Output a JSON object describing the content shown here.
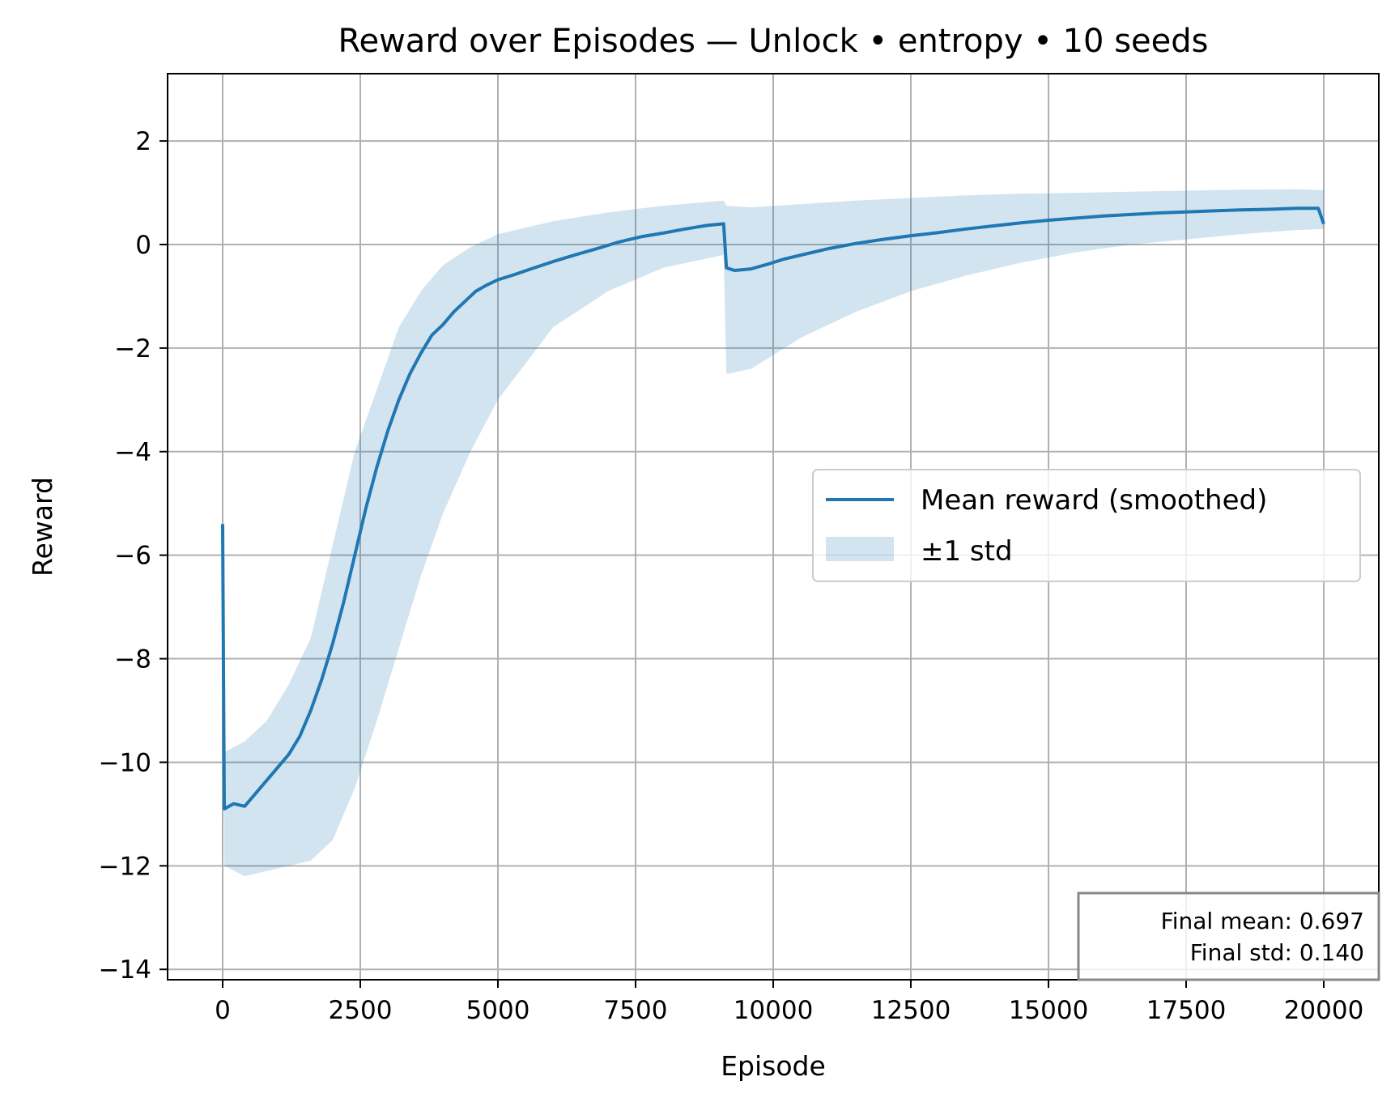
{
  "chart_data": {
    "type": "line",
    "title": "Reward over Episodes — Unlock • entropy • 10 seeds",
    "xlabel": "Episode",
    "ylabel": "Reward",
    "xlim": [
      -1000,
      21000
    ],
    "ylim": [
      -14.2,
      3.3
    ],
    "xticks": [
      0,
      2500,
      5000,
      7500,
      10000,
      12500,
      15000,
      17500,
      20000
    ],
    "xtick_labels": [
      "0",
      "2500",
      "5000",
      "7500",
      "10000",
      "12500",
      "15000",
      "17500",
      "20000"
    ],
    "yticks": [
      -14,
      -12,
      -10,
      -8,
      -6,
      -4,
      -2,
      0,
      2
    ],
    "ytick_labels": [
      "−14",
      "−12",
      "−10",
      "−8",
      "−6",
      "−4",
      "−2",
      "0",
      "2"
    ],
    "grid": true,
    "legend_position": "center-right",
    "series": [
      {
        "name": "Mean reward (smoothed)",
        "kind": "line",
        "color": "#1f77b4",
        "x": [
          0,
          30,
          200,
          400,
          600,
          800,
          1000,
          1200,
          1400,
          1600,
          1800,
          2000,
          2200,
          2400,
          2600,
          2800,
          3000,
          3200,
          3400,
          3600,
          3800,
          4000,
          4200,
          4400,
          4600,
          4800,
          5000,
          5300,
          5600,
          6000,
          6400,
          6800,
          7200,
          7600,
          8000,
          8400,
          8800,
          9100,
          9150,
          9300,
          9600,
          9900,
          10200,
          10600,
          11000,
          11500,
          12000,
          12500,
          13000,
          13500,
          14000,
          14500,
          15000,
          15500,
          16000,
          16500,
          17000,
          17500,
          18000,
          18500,
          19000,
          19500,
          19900,
          20000
        ],
        "y": [
          -5.4,
          -10.9,
          -10.8,
          -10.85,
          -10.6,
          -10.35,
          -10.1,
          -9.85,
          -9.5,
          -9.0,
          -8.4,
          -7.7,
          -6.9,
          -6.0,
          -5.1,
          -4.3,
          -3.6,
          -3.0,
          -2.5,
          -2.1,
          -1.75,
          -1.55,
          -1.3,
          -1.1,
          -0.9,
          -0.78,
          -0.68,
          -0.58,
          -0.47,
          -0.33,
          -0.2,
          -0.08,
          0.05,
          0.15,
          0.22,
          0.3,
          0.37,
          0.4,
          -0.45,
          -0.5,
          -0.47,
          -0.38,
          -0.28,
          -0.18,
          -0.08,
          0.02,
          0.1,
          0.17,
          0.23,
          0.3,
          0.36,
          0.42,
          0.47,
          0.51,
          0.55,
          0.58,
          0.61,
          0.63,
          0.65,
          0.67,
          0.68,
          0.7,
          0.7,
          0.4
        ]
      },
      {
        "name": "±1 std",
        "kind": "band",
        "color": "#1f77b4",
        "opacity": 0.2,
        "x": [
          0,
          30,
          400,
          800,
          1200,
          1600,
          2000,
          2400,
          2800,
          3200,
          3600,
          4000,
          4500,
          5000,
          6000,
          7000,
          8000,
          9100,
          9150,
          9600,
          10500,
          11500,
          12500,
          13500,
          14500,
          15500,
          16500,
          17500,
          18500,
          19500,
          20000
        ],
        "lower": [
          -5.4,
          -12.0,
          -12.2,
          -12.1,
          -12.0,
          -11.9,
          -11.5,
          -10.5,
          -9.2,
          -7.8,
          -6.4,
          -5.2,
          -4.0,
          -3.0,
          -1.6,
          -0.9,
          -0.45,
          -0.2,
          -2.5,
          -2.4,
          -1.8,
          -1.3,
          -0.9,
          -0.6,
          -0.35,
          -0.15,
          0.0,
          0.1,
          0.2,
          0.28,
          0.3
        ],
        "upper": [
          -5.4,
          -9.8,
          -9.6,
          -9.2,
          -8.5,
          -7.6,
          -5.8,
          -4.0,
          -2.8,
          -1.6,
          -0.9,
          -0.4,
          -0.05,
          0.2,
          0.45,
          0.62,
          0.75,
          0.85,
          0.75,
          0.72,
          0.78,
          0.85,
          0.9,
          0.95,
          0.98,
          1.0,
          1.02,
          1.04,
          1.06,
          1.07,
          1.05
        ]
      }
    ],
    "annotation": {
      "lines": [
        "Final mean: 0.697",
        "Final std: 0.140"
      ],
      "position": "bottom-right"
    }
  }
}
